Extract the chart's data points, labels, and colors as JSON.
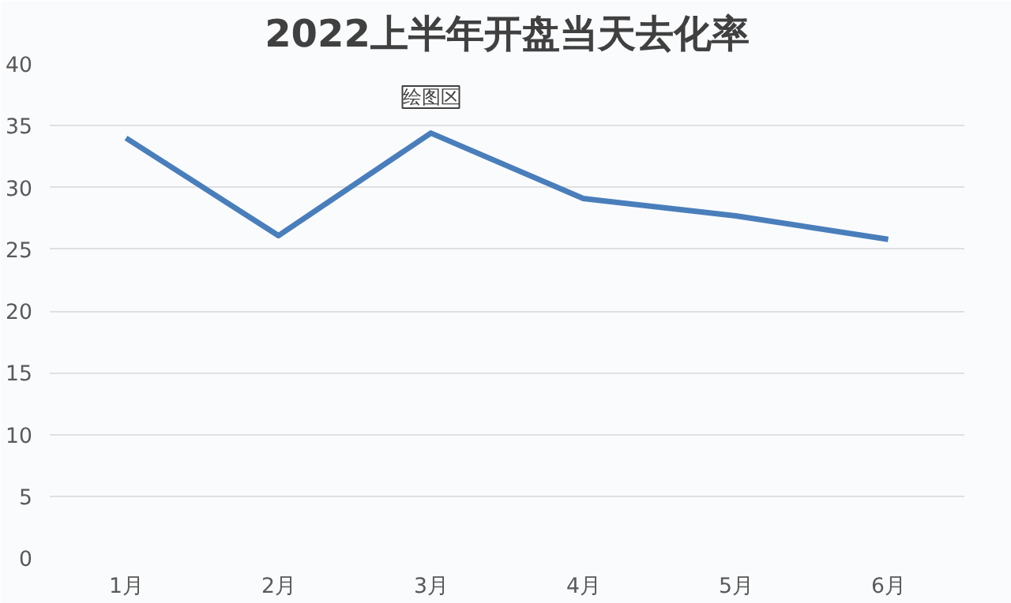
{
  "chart_data": {
    "type": "line",
    "title": "2022上半年开盘当天去化率",
    "categories": [
      "1月",
      "2月",
      "3月",
      "4月",
      "5月",
      "6月"
    ],
    "series": [
      {
        "color": "#4a7ebb",
        "values": [
          34.0,
          26.1,
          34.4,
          29.1,
          27.7,
          25.8
        ]
      }
    ],
    "ylim": [
      0,
      40
    ],
    "yticks": [
      0,
      5,
      10,
      15,
      20,
      25,
      30,
      35,
      40
    ],
    "grid": "y",
    "marker": "none",
    "line_style": "solid",
    "annotations": [
      "绘图区"
    ]
  }
}
